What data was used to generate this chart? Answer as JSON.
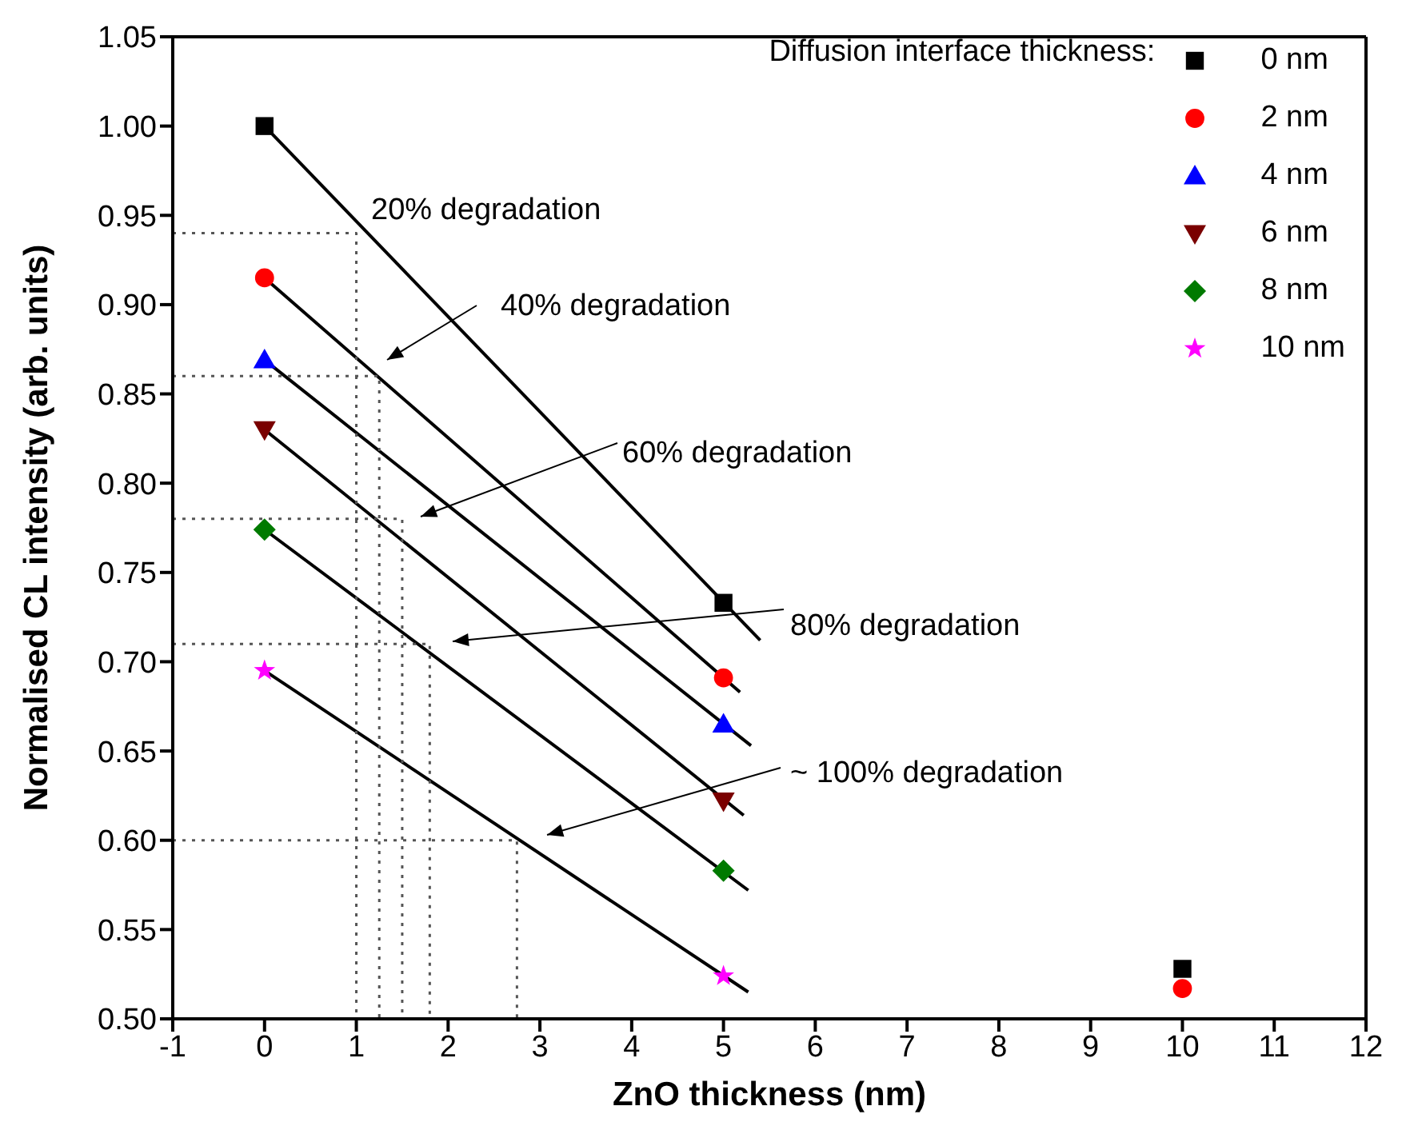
{
  "chart_data": {
    "type": "scatter",
    "xlabel": "ZnO thickness (nm)",
    "ylabel": "Normalised CL intensity (arb. units)",
    "legend_title": "Diffusion interface thickness:",
    "legend": "top right",
    "grid": false,
    "xlim": [
      -1,
      12
    ],
    "xticks": [
      -1,
      0,
      1,
      2,
      3,
      4,
      5,
      6,
      7,
      8,
      9,
      10,
      11,
      12
    ],
    "ylim": [
      0.5,
      1.05
    ],
    "yticks": [
      {
        "value": 0.5,
        "label": "0.50"
      },
      {
        "value": 0.55,
        "label": "0.55"
      },
      {
        "value": 0.6,
        "label": "0.60"
      },
      {
        "value": 0.65,
        "label": "0.65"
      },
      {
        "value": 0.7,
        "label": "0.70"
      },
      {
        "value": 0.75,
        "label": "0.75"
      },
      {
        "value": 0.8,
        "label": "0.80"
      },
      {
        "value": 0.85,
        "label": "0.85"
      },
      {
        "value": 0.9,
        "label": "0.90"
      },
      {
        "value": 0.95,
        "label": "0.95"
      },
      {
        "value": 1.0,
        "label": "1.00"
      },
      {
        "value": 1.05,
        "label": "1.05"
      }
    ],
    "series": [
      {
        "type": "line",
        "color": "#000000",
        "marker": "none",
        "line_style": "solid",
        "x": [
          0,
          5.4
        ],
        "values": [
          1.0,
          0.712
        ]
      },
      {
        "type": "line",
        "color": "#000000",
        "marker": "none",
        "line_style": "solid",
        "x": [
          0,
          5.18
        ],
        "values": [
          0.915,
          0.683
        ]
      },
      {
        "type": "line",
        "color": "#000000",
        "marker": "none",
        "line_style": "solid",
        "x": [
          0,
          5.3
        ],
        "values": [
          0.869,
          0.653
        ]
      },
      {
        "type": "line",
        "color": "#000000",
        "marker": "none",
        "line_style": "solid",
        "x": [
          0,
          5.22
        ],
        "values": [
          0.83,
          0.614
        ]
      },
      {
        "type": "line",
        "color": "#000000",
        "marker": "none",
        "line_style": "solid",
        "x": [
          0,
          5.27
        ],
        "values": [
          0.774,
          0.572
        ]
      },
      {
        "type": "line",
        "color": "#000000",
        "marker": "none",
        "line_style": "solid",
        "x": [
          0,
          5.27
        ],
        "values": [
          0.695,
          0.515
        ]
      },
      {
        "type": "line",
        "color": "#555555",
        "marker": "none",
        "line_style": "dotted",
        "x": [
          -1,
          1,
          1
        ],
        "values": [
          0.94,
          0.94,
          0.5
        ]
      },
      {
        "type": "line",
        "color": "#555555",
        "marker": "none",
        "line_style": "dotted",
        "x": [
          -1,
          1.25,
          1.25
        ],
        "values": [
          0.86,
          0.86,
          0.5
        ]
      },
      {
        "type": "line",
        "color": "#555555",
        "marker": "none",
        "line_style": "dotted",
        "x": [
          -1,
          1.5,
          1.5
        ],
        "values": [
          0.78,
          0.78,
          0.5
        ]
      },
      {
        "type": "line",
        "color": "#555555",
        "marker": "none",
        "line_style": "dotted",
        "x": [
          -1,
          1.8,
          1.8
        ],
        "values": [
          0.71,
          0.71,
          0.5
        ]
      },
      {
        "type": "line",
        "color": "#555555",
        "marker": "none",
        "line_style": "dotted",
        "x": [
          -1,
          2.75,
          2.75
        ],
        "values": [
          0.6,
          0.6,
          0.5
        ]
      },
      {
        "type": "scatter",
        "name": "0 nm",
        "color": "#000000",
        "marker": "square",
        "x": [
          0,
          5,
          10
        ],
        "values": [
          1.0,
          0.733,
          0.528
        ]
      },
      {
        "type": "scatter",
        "name": "2 nm",
        "color": "#ff0000",
        "marker": "circle",
        "x": [
          0,
          5,
          10
        ],
        "values": [
          0.915,
          0.691,
          0.517
        ]
      },
      {
        "type": "scatter",
        "name": "4 nm",
        "color": "#0000ff",
        "marker": "triangle",
        "x": [
          0,
          5
        ],
        "values": [
          0.869,
          0.665
        ]
      },
      {
        "type": "scatter",
        "name": "6 nm",
        "color": "#7a0000",
        "marker": "triangle-down",
        "x": [
          0,
          5
        ],
        "values": [
          0.83,
          0.622
        ]
      },
      {
        "type": "scatter",
        "name": "8 nm",
        "color": "#007a00",
        "marker": "diamond",
        "x": [
          0,
          5
        ],
        "values": [
          0.774,
          0.583
        ]
      },
      {
        "type": "scatter",
        "name": "10 nm",
        "color": "#ff00ff",
        "marker": "star",
        "x": [
          0,
          5
        ],
        "values": [
          0.695,
          0.524
        ]
      }
    ],
    "annotations": [
      "20% degradation",
      "40% degradation",
      "60% degradation",
      "80% degradation",
      "~ 100% degradation"
    ]
  }
}
